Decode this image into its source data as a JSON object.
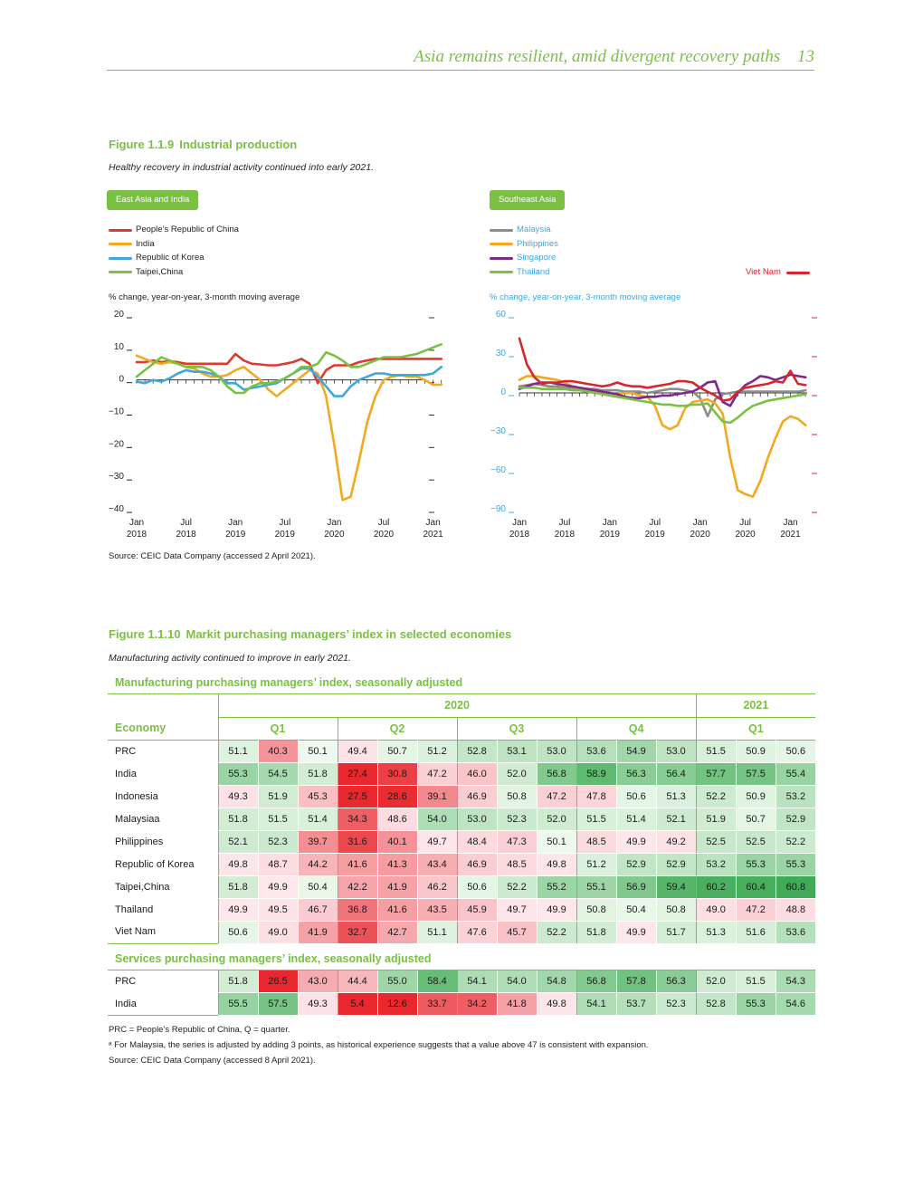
{
  "header": {
    "title": "Asia remains resilient, amid divergent recovery paths",
    "page": "13"
  },
  "fig1": {
    "number": "Figure 1.1.9",
    "title": "Industrial production",
    "subtitle": "Healthy recovery in industrial activity continued into early 2021.",
    "source": "Source: CEIC Data Company (accessed 2 April 2021)."
  },
  "fig2": {
    "number": "Figure 1.1.10",
    "title": "Markit purchasing managers’ index in selected economies",
    "subtitle": "Manufacturing activity continued to improve in early 2021.",
    "mfg_title": "Manufacturing purchasing managers’ index, seasonally adjusted",
    "svc_title": "Services purchasing managers’ index, seasonally adjusted",
    "economy_label": "Economy",
    "years": [
      "2020",
      "2021"
    ],
    "quarters": [
      "Q1",
      "Q2",
      "Q3",
      "Q4",
      "Q1"
    ],
    "note1": "PRC = People’s Republic of China, Q = quarter.",
    "note2": "ᵃ  For Malaysia, the series is adjusted by adding 3 points, as historical experience suggests that a value above 47 is consistent with expansion.",
    "source": "Source: CEIC Data Company (accessed 8 April 2021)."
  },
  "colors": {
    "accent": "#7ac143",
    "prc": "#e03a2f",
    "india": "#f2a91f",
    "korea": "#3fa7dc",
    "taipei": "#7ac143",
    "malaysia": "#8c8c8c",
    "philippines": "#f2a91f",
    "singapore": "#7b2a8c",
    "thailand": "#7ac143",
    "vietnam": "#d7262e"
  },
  "chart_data": [
    {
      "type": "line",
      "panel_label": "East Asia and India",
      "ylabel": "% change, year-on-year, 3-month moving average",
      "ylim": [
        -40,
        20
      ],
      "yticks": [
        "20",
        "10",
        "0",
        "−10",
        "−20",
        "−30",
        "−40"
      ],
      "xticks": [
        [
          "Jan",
          "2018"
        ],
        [
          "Jul",
          "2018"
        ],
        [
          "Jan",
          "2019"
        ],
        [
          "Jul",
          "2019"
        ],
        [
          "Jan",
          "2020"
        ],
        [
          "Jul",
          "2020"
        ],
        [
          "Jan",
          "2021"
        ]
      ],
      "x_months": 38,
      "series": [
        {
          "name": "People’s Republic of China",
          "color": "#e03a2f",
          "values": [
            5.5,
            5.5,
            6,
            5.5,
            5.8,
            5.5,
            5,
            5,
            5,
            5,
            5,
            5,
            8,
            6,
            5,
            4.8,
            4.5,
            4.5,
            5,
            5.5,
            6.5,
            5,
            -1,
            3,
            4.5,
            4.5,
            4.5,
            5.5,
            6,
            6.5,
            6.5,
            6.5,
            6.5,
            6.5,
            6.5,
            6.5,
            6.5,
            6.5
          ]
        },
        {
          "name": "India",
          "color": "#f2a91f",
          "values": [
            7.5,
            6.5,
            5.5,
            5,
            5.5,
            5,
            4,
            3.5,
            2,
            1,
            1,
            1.5,
            3,
            4,
            2,
            0,
            -3,
            -5,
            -3,
            -1,
            1,
            3,
            2,
            -5,
            -20,
            -37,
            -36,
            -25,
            -13,
            -5,
            0,
            1,
            1.5,
            1,
            1,
            0,
            -1.5,
            -1.5
          ]
        },
        {
          "name": "Republic of Korea",
          "color": "#3fa7dc",
          "values": [
            -0.5,
            -1,
            0,
            -0.5,
            0.5,
            2,
            3,
            2.5,
            2.5,
            2,
            1,
            -1,
            -1,
            -3,
            -2.5,
            -2,
            -1.5,
            -1,
            0.5,
            2,
            3.5,
            3.5,
            1,
            -2,
            -5,
            -5,
            -2,
            0,
            1,
            2,
            2,
            1.5,
            1.5,
            1.5,
            1.5,
            1.5,
            2,
            4
          ]
        },
        {
          "name": "Taipei,China",
          "color": "#7ac143",
          "values": [
            1,
            3,
            5,
            7,
            6,
            5,
            4,
            4,
            4,
            3,
            1,
            -2,
            -4,
            -4,
            -2,
            -1,
            -1,
            -0.5,
            0.5,
            2,
            4,
            4,
            5,
            8.5,
            7.5,
            6,
            4,
            4,
            5,
            6,
            7,
            7,
            7,
            7.5,
            8,
            9,
            10,
            11
          ]
        }
      ]
    },
    {
      "type": "line",
      "panel_label": "Southeast Asia",
      "ylabel": "% change, year-on-year, 3-month moving average",
      "ylim": [
        -90,
        60
      ],
      "yticks": [
        "60",
        "30",
        "0",
        "−30",
        "−60",
        "−90"
      ],
      "xticks": [
        [
          "Jan",
          "2018"
        ],
        [
          "Jul",
          "2018"
        ],
        [
          "Jan",
          "2019"
        ],
        [
          "Jul",
          "2019"
        ],
        [
          "Jan",
          "2020"
        ],
        [
          "Jul",
          "2020"
        ],
        [
          "Jan",
          "2021"
        ]
      ],
      "x_months": 39,
      "series": [
        {
          "name": "Malaysia",
          "color": "#8c8c8c",
          "values": [
            5,
            6,
            7,
            6,
            5,
            5,
            4,
            4,
            3,
            3,
            3,
            2,
            2,
            2,
            1,
            1,
            1,
            0,
            1,
            2,
            3,
            3,
            2,
            1,
            -4,
            -18,
            -5,
            -1,
            0,
            1,
            1,
            1,
            1,
            1,
            1,
            1,
            1,
            1,
            2
          ]
        },
        {
          "name": "Philippines",
          "color": "#f2a91f",
          "values": [
            10,
            13,
            13,
            12,
            11,
            10,
            8,
            5,
            3,
            2,
            1,
            0,
            -1,
            -1,
            0,
            0,
            -2,
            -3,
            -10,
            -25,
            -28,
            -25,
            -12,
            -7,
            -6,
            -5,
            -8,
            -16,
            -50,
            -75,
            -78,
            -80,
            -68,
            -50,
            -35,
            -22,
            -18,
            -20,
            -25
          ]
        },
        {
          "name": "Singapore",
          "color": "#7b2a8c",
          "values": [
            3,
            5,
            7,
            8,
            8,
            7,
            6,
            5,
            4,
            3,
            2,
            1,
            0,
            -1,
            -3,
            -4,
            -4,
            -3,
            -3,
            -2,
            -2,
            -1,
            0,
            1,
            4,
            8,
            9,
            -7,
            -10,
            0,
            6,
            9,
            13,
            12,
            10,
            12,
            14,
            13,
            12
          ]
        },
        {
          "name": "Thailand",
          "color": "#7ac143",
          "values": [
            4,
            4,
            4,
            3,
            3,
            3,
            3,
            2,
            2,
            1,
            0,
            -1,
            -2,
            -3,
            -4,
            -5,
            -6,
            -7,
            -8,
            -9,
            -9,
            -10,
            -10,
            -9,
            -9,
            -8,
            -15,
            -22,
            -23,
            -19,
            -14,
            -10,
            -8,
            -6,
            -5,
            -4,
            -3,
            -2,
            -1
          ]
        },
        {
          "name": "Viet Nam",
          "color": "#d7262e",
          "values": [
            42,
            22,
            12,
            7,
            8,
            8,
            9,
            9,
            8,
            7,
            6,
            5,
            6,
            8,
            6,
            5,
            5,
            4,
            5,
            6,
            7,
            9,
            9,
            8,
            4,
            1,
            -2,
            -6,
            -5,
            1,
            4,
            5,
            6,
            7,
            9,
            8,
            17,
            7,
            6
          ]
        }
      ]
    },
    {
      "type": "table",
      "name": "Manufacturing purchasing managers’ index, seasonally adjusted",
      "rows": [
        {
          "economy": "PRC",
          "values": [
            "51.1",
            "40.3",
            "50.1",
            "49.4",
            "50.7",
            "51.2",
            "52.8",
            "53.1",
            "53.0",
            "53.6",
            "54.9",
            "53.0",
            "51.5",
            "50.9",
            "50.6"
          ]
        },
        {
          "economy": "India",
          "values": [
            "55.3",
            "54.5",
            "51.8",
            "27.4",
            "30.8",
            "47.2",
            "46.0",
            "52.0",
            "56.8",
            "58.9",
            "56.3",
            "56.4",
            "57.7",
            "57.5",
            "55.4"
          ]
        },
        {
          "economy": "Indonesia",
          "values": [
            "49.3",
            "51.9",
            "45.3",
            "27.5",
            "28.6",
            "39.1",
            "46.9",
            "50.8",
            "47.2",
            "47.8",
            "50.6",
            "51.3",
            "52.2",
            "50.9",
            "53.2"
          ]
        },
        {
          "economy": "Malaysiaa",
          "values": [
            "51.8",
            "51.5",
            "51.4",
            "34.3",
            "48.6",
            "54.0",
            "53.0",
            "52.3",
            "52.0",
            "51.5",
            "51.4",
            "52.1",
            "51.9",
            "50.7",
            "52.9"
          ]
        },
        {
          "economy": "Philippines",
          "values": [
            "52.1",
            "52.3",
            "39.7",
            "31.6",
            "40.1",
            "49.7",
            "48.4",
            "47.3",
            "50.1",
            "48.5",
            "49.9",
            "49.2",
            "52.5",
            "52.5",
            "52.2"
          ]
        },
        {
          "economy": "Republic of Korea",
          "values": [
            "49.8",
            "48.7",
            "44.2",
            "41.6",
            "41.3",
            "43.4",
            "46.9",
            "48.5",
            "49.8",
            "51.2",
            "52.9",
            "52.9",
            "53.2",
            "55.3",
            "55.3"
          ]
        },
        {
          "economy": "Taipei,China",
          "values": [
            "51.8",
            "49.9",
            "50.4",
            "42.2",
            "41.9",
            "46.2",
            "50.6",
            "52.2",
            "55.2",
            "55.1",
            "56.9",
            "59.4",
            "60.2",
            "60.4",
            "60.8"
          ]
        },
        {
          "economy": "Thailand",
          "values": [
            "49.9",
            "49.5",
            "46.7",
            "36.8",
            "41.6",
            "43.5",
            "45.9",
            "49.7",
            "49.9",
            "50.8",
            "50.4",
            "50.8",
            "49.0",
            "47.2",
            "48.8"
          ]
        },
        {
          "economy": "Viet Nam",
          "values": [
            "50.6",
            "49.0",
            "41.9",
            "32.7",
            "42.7",
            "51.1",
            "47.6",
            "45.7",
            "52.2",
            "51.8",
            "49.9",
            "51.7",
            "51.3",
            "51.6",
            "53.6"
          ]
        }
      ]
    },
    {
      "type": "table",
      "name": "Services purchasing managers’ index, seasonally adjusted",
      "rows": [
        {
          "economy": "PRC",
          "values": [
            "51.8",
            "26.5",
            "43.0",
            "44.4",
            "55.0",
            "58.4",
            "54.1",
            "54.0",
            "54.8",
            "56.8",
            "57.8",
            "56.3",
            "52.0",
            "51.5",
            "54.3"
          ]
        },
        {
          "economy": "India",
          "values": [
            "55.5",
            "57.5",
            "49.3",
            "5.4",
            "12.6",
            "33.7",
            "34.2",
            "41.8",
            "49.8",
            "54.1",
            "53.7",
            "52.3",
            "52.8",
            "55.3",
            "54.6"
          ]
        }
      ]
    }
  ]
}
